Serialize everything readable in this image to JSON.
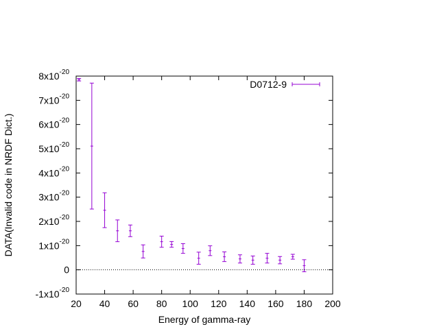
{
  "chart_data": {
    "type": "errorbar",
    "xlabel": "Energy of gamma-ray",
    "ylabel": "DATA(Invalid code in NRDF Dict.)",
    "xlim": [
      20,
      200
    ],
    "xticks": [
      20,
      40,
      60,
      80,
      100,
      120,
      140,
      160,
      180,
      200
    ],
    "ylim": [
      -1e-20,
      8e-20
    ],
    "yticks": [
      {
        "value": -1e-20,
        "label": "-1x10",
        "sup": "-20"
      },
      0,
      {
        "value": 1e-20,
        "label": "1x10",
        "sup": "-20"
      },
      {
        "value": 2e-20,
        "label": "2x10",
        "sup": "-20"
      },
      {
        "value": 3e-20,
        "label": "3x10",
        "sup": "-20"
      },
      {
        "value": 4e-20,
        "label": "4x10",
        "sup": "-20"
      },
      {
        "value": 5e-20,
        "label": "5x10",
        "sup": "-20"
      },
      {
        "value": 6e-20,
        "label": "6x10",
        "sup": "-20"
      },
      {
        "value": 7e-20,
        "label": "7x10",
        "sup": "-20"
      },
      {
        "value": 8e-20,
        "label": "8x10",
        "sup": "-20"
      }
    ],
    "zeroaxis": true,
    "legend": "top-right",
    "series": [
      {
        "name": "D0712-9",
        "color": "#9400d3",
        "x": [
          22,
          31,
          40,
          49,
          58,
          67,
          80,
          87,
          95,
          106,
          114,
          124,
          135,
          144,
          154,
          163,
          172,
          180
        ],
        "values": [
          7.85e-20,
          5.11e-20,
          2.46e-20,
          1.61e-20,
          1.61e-20,
          7.6e-21,
          1.16e-20,
          1.05e-20,
          8.8e-21,
          4.8e-21,
          7.9e-21,
          5.4e-21,
          4.5e-21,
          4e-21,
          4.8e-21,
          4e-21,
          5.4e-21,
          1.7e-21
        ],
        "errors": [
          5e-22,
          2.6e-20,
          7.2e-21,
          4.5e-21,
          2.4e-21,
          2.7e-21,
          2.3e-21,
          1.2e-21,
          2e-21,
          2.5e-21,
          2e-21,
          2e-21,
          1.7e-21,
          1.7e-21,
          2e-21,
          1.5e-21,
          1e-21,
          2.5e-21
        ]
      }
    ]
  }
}
